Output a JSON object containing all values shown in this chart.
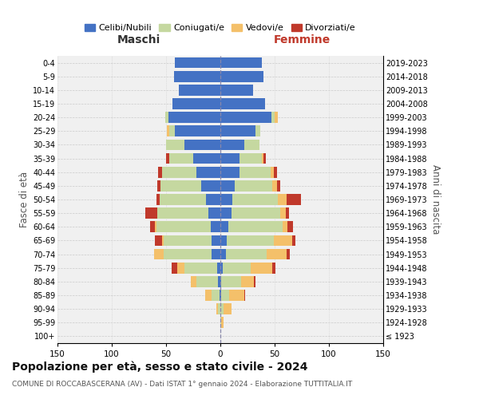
{
  "age_groups": [
    "100+",
    "95-99",
    "90-94",
    "85-89",
    "80-84",
    "75-79",
    "70-74",
    "65-69",
    "60-64",
    "55-59",
    "50-54",
    "45-49",
    "40-44",
    "35-39",
    "30-34",
    "25-29",
    "20-24",
    "15-19",
    "10-14",
    "5-9",
    "0-4"
  ],
  "birth_years": [
    "≤ 1923",
    "1924-1928",
    "1929-1933",
    "1934-1938",
    "1939-1943",
    "1944-1948",
    "1949-1953",
    "1954-1958",
    "1959-1963",
    "1964-1968",
    "1969-1973",
    "1974-1978",
    "1979-1983",
    "1984-1988",
    "1989-1993",
    "1994-1998",
    "1999-2003",
    "2004-2008",
    "2009-2013",
    "2014-2018",
    "2019-2023"
  ],
  "maschi": {
    "celibi": [
      0,
      0,
      0,
      1,
      2,
      3,
      8,
      8,
      9,
      11,
      13,
      18,
      22,
      25,
      33,
      42,
      48,
      44,
      38,
      43,
      42
    ],
    "coniugati": [
      0,
      0,
      2,
      7,
      20,
      30,
      44,
      44,
      50,
      47,
      43,
      37,
      32,
      22,
      17,
      5,
      3,
      0,
      0,
      0,
      0
    ],
    "vedovi": [
      0,
      0,
      2,
      6,
      5,
      7,
      9,
      2,
      1,
      0,
      0,
      0,
      0,
      0,
      0,
      2,
      0,
      0,
      0,
      0,
      0
    ],
    "divorziati": [
      0,
      0,
      0,
      0,
      0,
      5,
      0,
      6,
      5,
      11,
      3,
      3,
      3,
      3,
      0,
      0,
      0,
      0,
      0,
      0,
      0
    ]
  },
  "femmine": {
    "nubili": [
      0,
      0,
      0,
      1,
      1,
      2,
      5,
      6,
      7,
      10,
      11,
      13,
      18,
      18,
      22,
      32,
      47,
      41,
      30,
      40,
      38
    ],
    "coniugate": [
      0,
      1,
      3,
      7,
      18,
      26,
      38,
      43,
      50,
      45,
      42,
      35,
      28,
      20,
      14,
      5,
      3,
      0,
      0,
      0,
      0
    ],
    "vedove": [
      0,
      2,
      7,
      14,
      12,
      20,
      18,
      17,
      5,
      5,
      8,
      4,
      3,
      2,
      0,
      0,
      3,
      0,
      0,
      0,
      0
    ],
    "divorziate": [
      0,
      0,
      0,
      1,
      1,
      3,
      3,
      3,
      5,
      3,
      13,
      3,
      3,
      2,
      0,
      0,
      0,
      0,
      0,
      0,
      0
    ]
  },
  "colors": {
    "celibi": "#4472c4",
    "coniugati": "#c5d8a0",
    "vedovi": "#f4c06a",
    "divorziati": "#c0392b"
  },
  "xlim": 150,
  "title": "Popolazione per età, sesso e stato civile - 2024",
  "subtitle": "COMUNE DI ROCCABASCERANA (AV) - Dati ISTAT 1° gennaio 2024 - Elaborazione TUTTITALIA.IT",
  "ylabel_left": "Fasce di età",
  "ylabel_right": "Anni di nascita",
  "maschi_label": "Maschi",
  "femmine_label": "Femmine",
  "legend_labels": [
    "Celibi/Nubili",
    "Coniugati/e",
    "Vedovi/e",
    "Divorziati/e"
  ],
  "bg_color": "#ffffff",
  "grid_color": "#cccccc"
}
